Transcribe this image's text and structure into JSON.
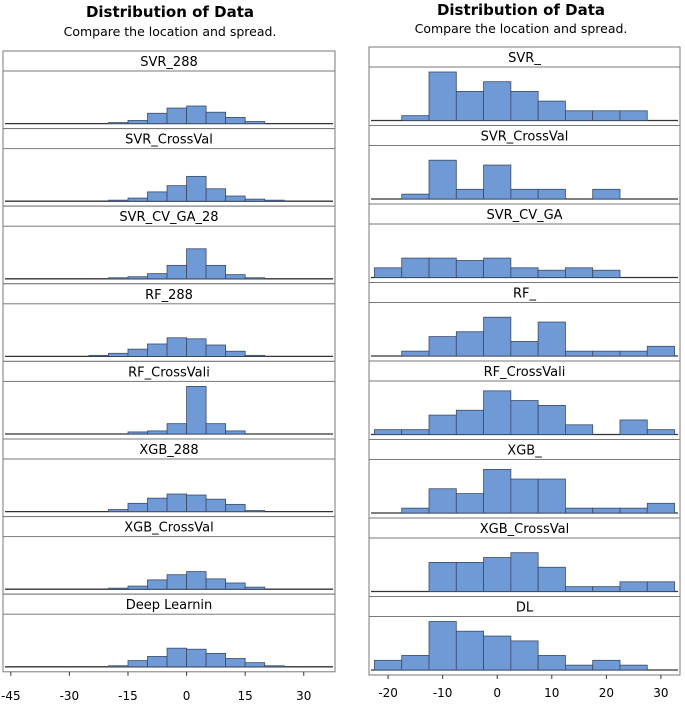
{
  "chart_data": [
    {
      "type": "bar",
      "title": "Distribution of Data",
      "subtitle": "Compare the location and spread.",
      "bin_width": 5,
      "xlim": [
        -47,
        38
      ],
      "x_ticks": [
        -45,
        -30,
        -15,
        0,
        15,
        30
      ],
      "panels": [
        {
          "name": "SVR_288",
          "bin_edges": [
            -20,
            -15,
            -10,
            -5,
            0,
            5,
            10,
            15,
            20
          ],
          "counts": [
            1,
            3,
            10,
            15,
            17,
            11,
            6,
            2
          ]
        },
        {
          "name": "SVR_CrossVal",
          "bin_edges": [
            -20,
            -15,
            -10,
            -5,
            0,
            5,
            10,
            15,
            20,
            25
          ],
          "counts": [
            1,
            3,
            9,
            15,
            24,
            12,
            5,
            2,
            1
          ]
        },
        {
          "name": "SVR_CV_GA_28",
          "bin_edges": [
            -20,
            -15,
            -10,
            -5,
            0,
            5,
            10,
            15,
            20
          ],
          "counts": [
            1,
            2,
            5,
            13,
            29,
            13,
            4,
            1
          ]
        },
        {
          "name": "RF_288",
          "bin_edges": [
            -25,
            -20,
            -15,
            -10,
            -5,
            0,
            5,
            10,
            15,
            20
          ],
          "counts": [
            1,
            3,
            7,
            12,
            18,
            17,
            11,
            5,
            1
          ]
        },
        {
          "name": "RF_CrossVali",
          "bin_edges": [
            -15,
            -10,
            -5,
            0,
            5,
            10,
            15
          ],
          "counts": [
            2,
            3,
            10,
            46,
            10,
            3
          ]
        },
        {
          "name": "XGB_288",
          "bin_edges": [
            -20,
            -15,
            -10,
            -5,
            0,
            5,
            10,
            15,
            20
          ],
          "counts": [
            2,
            8,
            13,
            17,
            16,
            12,
            7,
            1
          ]
        },
        {
          "name": "XGB_CrossVal",
          "bin_edges": [
            -20,
            -15,
            -10,
            -5,
            0,
            5,
            10,
            15,
            20
          ],
          "counts": [
            1,
            3,
            9,
            14,
            17,
            10,
            6,
            2
          ]
        },
        {
          "name": "Deep Learnin",
          "bin_edges": [
            -20,
            -15,
            -10,
            -5,
            0,
            5,
            10,
            15,
            20,
            25
          ],
          "counts": [
            1,
            6,
            10,
            18,
            17,
            13,
            8,
            4,
            1
          ]
        }
      ]
    },
    {
      "type": "bar",
      "title": "Distribution of Data",
      "subtitle": "Compare the location and spread.",
      "bin_width": 5,
      "xlim": [
        -23.5,
        33.5
      ],
      "x_ticks": [
        -20,
        -10,
        0,
        10,
        20,
        30
      ],
      "panels": [
        {
          "name": "SVR_",
          "bin_edges": [
            -17.5,
            -12.5,
            -7.5,
            -2.5,
            2.5,
            7.5,
            12.5,
            17.5,
            22.5,
            27.5
          ],
          "counts": [
            1,
            10,
            6,
            8,
            6,
            4,
            2,
            2,
            2
          ]
        },
        {
          "name": "SVR_CrossVal",
          "bin_edges": [
            -17.5,
            -12.5,
            -7.5,
            -2.5,
            2.5,
            7.5,
            12.5,
            17.5,
            22.5,
            27.5
          ],
          "counts": [
            1,
            8,
            2,
            7,
            2,
            2,
            0,
            2,
            0
          ]
        },
        {
          "name": "SVR_CV_GA",
          "bin_edges": [
            -22.5,
            -17.5,
            -12.5,
            -7.5,
            -2.5,
            2.5,
            7.5,
            12.5,
            17.5,
            22.5
          ],
          "counts": [
            2,
            4,
            4,
            3.5,
            4,
            2,
            1.5,
            2,
            1.5
          ]
        },
        {
          "name": "RF_",
          "bin_edges": [
            -17.5,
            -12.5,
            -7.5,
            -2.5,
            2.5,
            7.5,
            12.5,
            17.5,
            22.5,
            27.5,
            32.5
          ],
          "counts": [
            1,
            4,
            5,
            8,
            3,
            7,
            1,
            1,
            1,
            2
          ]
        },
        {
          "name": "RF_CrossVali",
          "bin_edges": [
            -22.5,
            -17.5,
            -12.5,
            -7.5,
            -2.5,
            2.5,
            7.5,
            12.5,
            17.5,
            22.5,
            27.5,
            32.5
          ],
          "counts": [
            1,
            1,
            4,
            5,
            9,
            7,
            6,
            2,
            0,
            3,
            1
          ]
        },
        {
          "name": "XGB_",
          "bin_edges": [
            -17.5,
            -12.5,
            -7.5,
            -2.5,
            2.5,
            7.5,
            12.5,
            17.5,
            22.5,
            27.5,
            32.5
          ],
          "counts": [
            1,
            5,
            4,
            9,
            7,
            7,
            1,
            1,
            1,
            2
          ]
        },
        {
          "name": "XGB_CrossVal",
          "bin_edges": [
            -12.5,
            -7.5,
            -2.5,
            2.5,
            7.5,
            12.5,
            17.5,
            22.5,
            27.5,
            32.5
          ],
          "counts": [
            6,
            6,
            7,
            8,
            5,
            1,
            1,
            2,
            2
          ]
        },
        {
          "name": "DL",
          "bin_edges": [
            -22.5,
            -17.5,
            -12.5,
            -7.5,
            -2.5,
            2.5,
            7.5,
            12.5,
            17.5,
            22.5,
            27.5
          ],
          "counts": [
            2,
            3,
            10,
            8,
            7,
            6,
            3,
            1,
            2,
            1
          ]
        }
      ]
    }
  ],
  "colors": {
    "bar_fill": "#6f9ad6",
    "bar_stroke": "#3a4a66",
    "baseline": "#333333",
    "panel_border": "#7a7a7a",
    "strip_fill": "#ffffff"
  }
}
